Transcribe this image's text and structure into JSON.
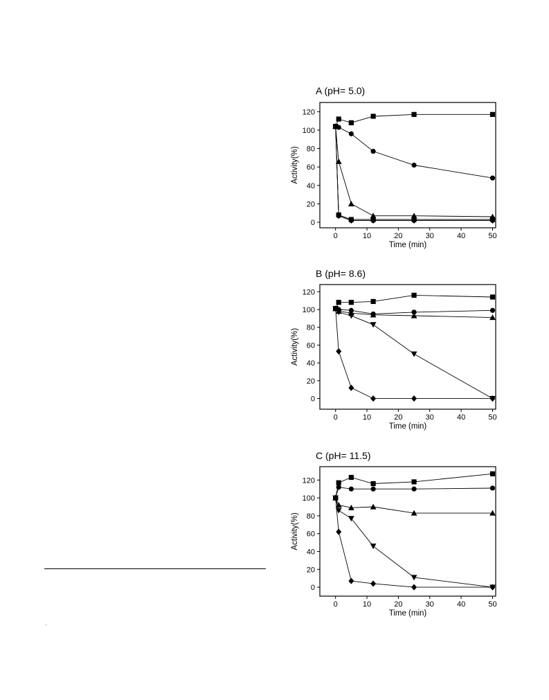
{
  "chart_data": [
    {
      "type": "line",
      "title": "A (pH= 5.0)",
      "xlabel": "Time (min)",
      "ylabel": "Activity(%)",
      "xlim": [
        -5,
        51
      ],
      "ylim": [
        -6,
        130
      ],
      "xticks": [
        "0",
        "10",
        "20",
        "30",
        "40",
        "50"
      ],
      "yticks": [
        "0",
        "20",
        "40",
        "60",
        "80",
        "100",
        "120"
      ],
      "grid": false,
      "legend": "none",
      "series": [
        {
          "marker": "square",
          "points": [
            [
              0,
              104
            ],
            [
              1,
              112
            ],
            [
              5,
              108
            ],
            [
              12,
              115
            ],
            [
              25,
              117
            ],
            [
              50,
              117
            ]
          ]
        },
        {
          "marker": "circle",
          "points": [
            [
              0,
              104
            ],
            [
              1,
              103
            ],
            [
              5,
              96
            ],
            [
              12,
              77
            ],
            [
              25,
              62
            ],
            [
              50,
              48
            ]
          ]
        },
        {
          "marker": "triangle",
          "points": [
            [
              0,
              104
            ],
            [
              1,
              66
            ],
            [
              5,
              20
            ],
            [
              12,
              7
            ],
            [
              25,
              7
            ],
            [
              50,
              6
            ]
          ]
        },
        {
          "marker": "square",
          "points": [
            [
              0,
              104
            ],
            [
              1,
              8
            ],
            [
              5,
              3
            ],
            [
              12,
              3
            ],
            [
              25,
              3
            ],
            [
              50,
              3
            ]
          ]
        },
        {
          "marker": "circle",
          "points": [
            [
              0,
              104
            ],
            [
              1,
              7
            ],
            [
              5,
              2
            ],
            [
              12,
              2
            ],
            [
              25,
              2
            ],
            [
              50,
              2
            ]
          ]
        },
        {
          "marker": "diamond",
          "points": [
            [
              0,
              104
            ],
            [
              1,
              7
            ],
            [
              5,
              2
            ],
            [
              12,
              2
            ],
            [
              25,
              2
            ],
            [
              50,
              2
            ]
          ]
        }
      ]
    },
    {
      "type": "line",
      "title": "B (pH= 8.6)",
      "xlabel": "Time (min)",
      "ylabel": "Activity(%)",
      "xlim": [
        -5,
        51
      ],
      "ylim": [
        -12,
        128
      ],
      "xticks": [
        "0",
        "10",
        "20",
        "30",
        "40",
        "50"
      ],
      "yticks": [
        "0",
        "20",
        "40",
        "60",
        "80",
        "100",
        "120"
      ],
      "grid": false,
      "legend": "none",
      "series": [
        {
          "marker": "square",
          "points": [
            [
              0,
              101
            ],
            [
              1,
              108
            ],
            [
              5,
              108
            ],
            [
              12,
              109
            ],
            [
              25,
              116
            ],
            [
              50,
              114
            ]
          ]
        },
        {
          "marker": "circle",
          "points": [
            [
              0,
              101
            ],
            [
              1,
              100
            ],
            [
              5,
              99
            ],
            [
              12,
              95
            ],
            [
              25,
              97
            ],
            [
              50,
              99
            ]
          ]
        },
        {
          "marker": "triangle",
          "points": [
            [
              0,
              101
            ],
            [
              1,
              98
            ],
            [
              5,
              96
            ],
            [
              12,
              94
            ],
            [
              25,
              93
            ],
            [
              50,
              91
            ]
          ]
        },
        {
          "marker": "triangle-down",
          "points": [
            [
              0,
              101
            ],
            [
              1,
              97
            ],
            [
              5,
              93
            ],
            [
              12,
              83
            ],
            [
              25,
              50
            ],
            [
              50,
              0
            ]
          ]
        },
        {
          "marker": "diamond",
          "points": [
            [
              0,
              101
            ],
            [
              1,
              53
            ],
            [
              5,
              12
            ],
            [
              12,
              0
            ],
            [
              25,
              0
            ],
            [
              50,
              0
            ]
          ]
        }
      ]
    },
    {
      "type": "line",
      "title": "C (pH= 11.5)",
      "xlabel": "Time (min)",
      "ylabel": "Activity(%)",
      "xlim": [
        -5,
        51
      ],
      "ylim": [
        -10,
        135
      ],
      "xticks": [
        "0",
        "10",
        "20",
        "30",
        "40",
        "50"
      ],
      "yticks": [
        "0",
        "20",
        "40",
        "60",
        "80",
        "100",
        "120"
      ],
      "grid": false,
      "legend": "none",
      "series": [
        {
          "marker": "square",
          "points": [
            [
              0,
              100
            ],
            [
              1,
              117
            ],
            [
              5,
              123
            ],
            [
              12,
              116
            ],
            [
              25,
              118
            ],
            [
              50,
              127
            ]
          ]
        },
        {
          "marker": "circle",
          "points": [
            [
              0,
              100
            ],
            [
              1,
              112
            ],
            [
              5,
              110
            ],
            [
              12,
              110
            ],
            [
              25,
              110
            ],
            [
              50,
              111
            ]
          ]
        },
        {
          "marker": "triangle",
          "points": [
            [
              0,
              100
            ],
            [
              1,
              92
            ],
            [
              5,
              89
            ],
            [
              12,
              90
            ],
            [
              25,
              83
            ],
            [
              50,
              83
            ]
          ]
        },
        {
          "marker": "triangle-down",
          "points": [
            [
              0,
              100
            ],
            [
              1,
              86
            ],
            [
              5,
              77
            ],
            [
              12,
              46
            ],
            [
              25,
              11
            ],
            [
              50,
              0
            ]
          ]
        },
        {
          "marker": "diamond",
          "points": [
            [
              0,
              100
            ],
            [
              1,
              62
            ],
            [
              5,
              7
            ],
            [
              12,
              4
            ],
            [
              25,
              0
            ],
            [
              50,
              0
            ]
          ]
        }
      ]
    }
  ]
}
